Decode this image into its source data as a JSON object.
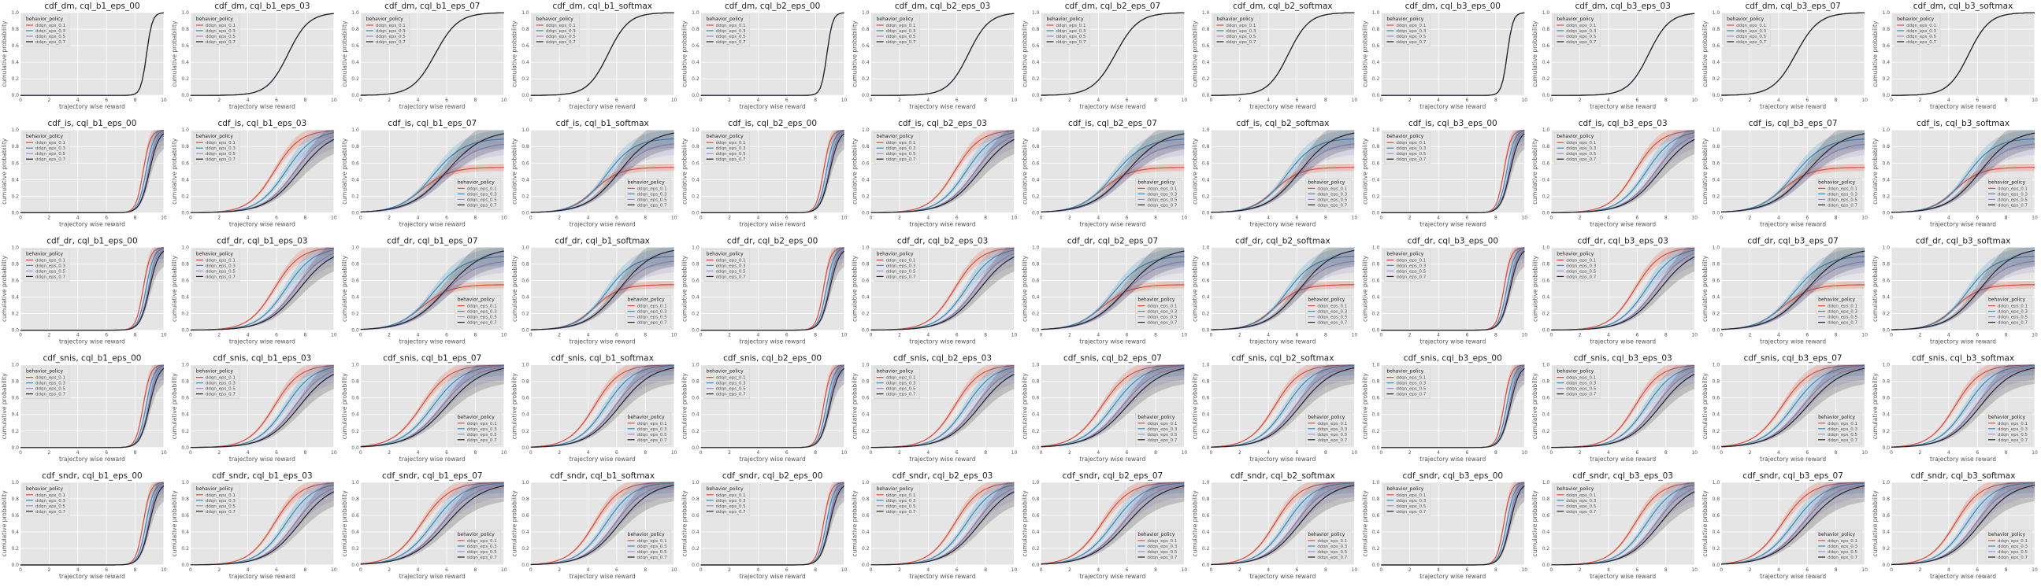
{
  "figure": {
    "rows": 5,
    "cols": 12,
    "xlabel": "trajectory wise reward",
    "ylabel": "cumulative probability",
    "legend_title": "behavior_policy",
    "x_ticks": [
      0,
      2,
      4,
      6,
      8,
      10
    ],
    "y_ticks": [
      "0.0",
      "0.2",
      "0.4",
      "0.6",
      "0.8",
      "1.0"
    ]
  },
  "chart_data": {
    "type": "line",
    "title_pattern": "cdf_{est}, cql_{b}_{policy}",
    "estimators": [
      "dm",
      "is",
      "dr",
      "snis",
      "sndr"
    ],
    "policies": [
      "b1_eps_00",
      "b1_eps_03",
      "b1_eps_07",
      "b1_softmax",
      "b2_eps_00",
      "b2_eps_03",
      "b2_eps_07",
      "b2_softmax",
      "b3_eps_00",
      "b3_eps_03",
      "b3_eps_07",
      "b3_softmax"
    ],
    "xlim": [
      0,
      10
    ],
    "ylim": [
      0,
      1
    ],
    "grid": true,
    "series": [
      {
        "name": "ddqn_eps_0.1",
        "color": "#e24a33"
      },
      {
        "name": "ddqn_eps_0.3",
        "color": "#348abd"
      },
      {
        "name": "ddqn_eps_0.5",
        "color": "#988ed5"
      },
      {
        "name": "ddqn_eps_0.7",
        "color": "#222222"
      }
    ],
    "legend_position": {
      "dm": "upper-left",
      "is": "mixed",
      "dr": "mixed",
      "snis": "mixed",
      "sndr": "mixed"
    }
  },
  "colors": {
    "panel_bg": "#e5e5e5",
    "grid": "#ffffff",
    "text": "#555555",
    "title": "#222222"
  }
}
